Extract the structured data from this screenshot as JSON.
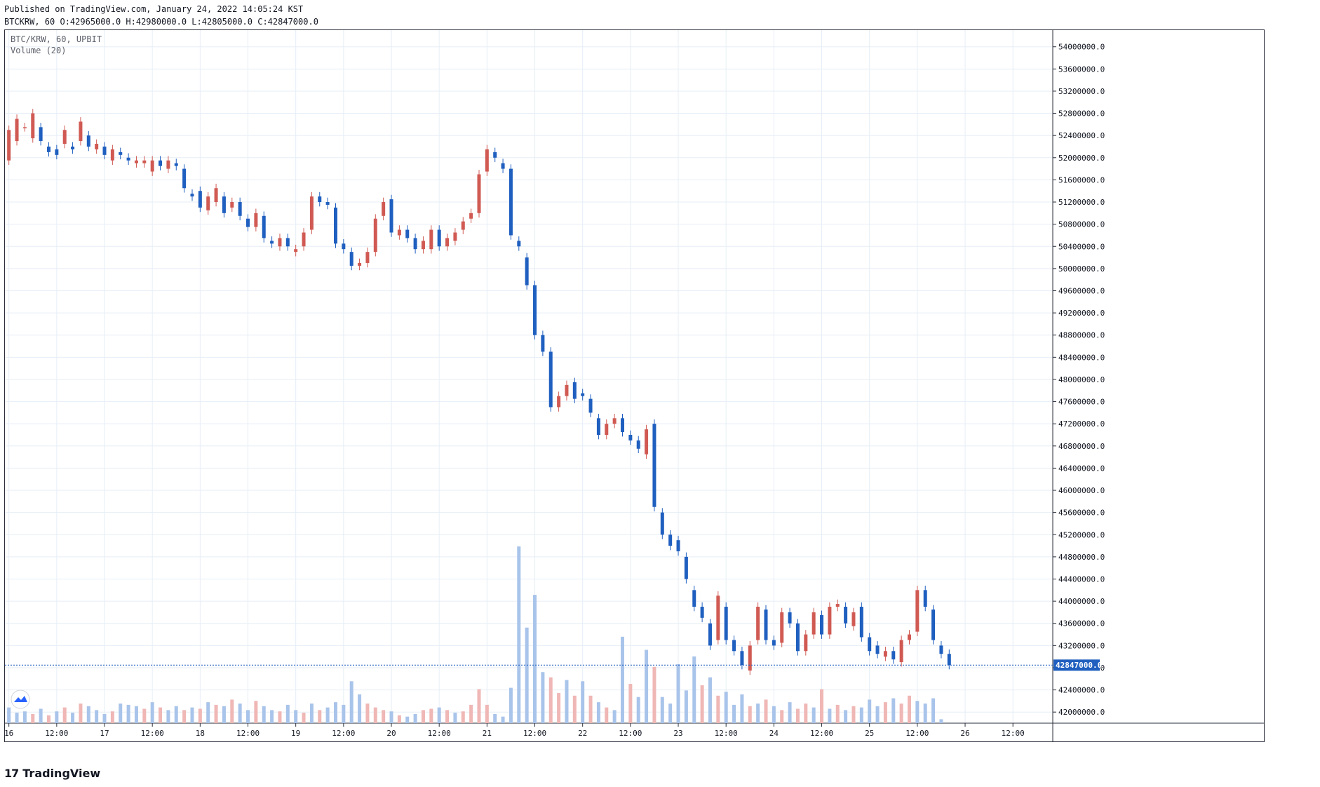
{
  "header": {
    "published_line": "Published on TradingView.com, January 24, 2022 14:05:24 KST",
    "ohlc_line": "BTCKRW, 60 O:42965000.0 H:42980000.0 L:42805000.0 C:42847000.0"
  },
  "overlay": {
    "symbol_label": "BTC/KRW, 60, UPBIT",
    "volume_label": "Volume (20)"
  },
  "footer": {
    "brand": "TradingView",
    "brand_mark": "17"
  },
  "colors": {
    "up": "#d05a53",
    "down": "#1f5fbf",
    "up_volume": "#efb7b5",
    "down_volume": "#a9c4ea",
    "grid": "#e6eef6",
    "last_price": "#1f5fbf"
  },
  "chart_data": {
    "type": "candlestick",
    "symbol": "BTC/KRW",
    "interval": "60",
    "exchange": "UPBIT",
    "ylim": [
      41800000,
      54300000
    ],
    "price_ticks": [
      42000000.0,
      42400000.0,
      42800000.0,
      43200000.0,
      43600000.0,
      44000000.0,
      44400000.0,
      44800000.0,
      45200000.0,
      45600000.0,
      46000000.0,
      46400000.0,
      46800000.0,
      47200000.0,
      47600000.0,
      48000000.0,
      48400000.0,
      48800000.0,
      49200000.0,
      49600000.0,
      50000000.0,
      50400000.0,
      50800000.0,
      51200000.0,
      51600000.0,
      52000000.0,
      52400000.0,
      52800000.0,
      53200000.0,
      53600000.0,
      54000000.0
    ],
    "last_price": "42847000.0",
    "last_price_value": 42847000,
    "time_ticks": [
      "16",
      "12:00",
      "17",
      "12:00",
      "18",
      "12:00",
      "19",
      "12:00",
      "20",
      "12:00",
      "21",
      "12:00",
      "22",
      "12:00",
      "23",
      "12:00",
      "24",
      "12:00",
      "25",
      "12:00",
      "26",
      "12:00"
    ],
    "time_tick_hours": [
      0,
      12,
      24,
      36,
      48,
      60,
      72,
      84,
      96,
      108,
      120,
      132,
      144,
      156,
      168,
      180,
      192,
      204,
      216,
      228,
      240,
      252
    ],
    "hour_range": [
      -1,
      262
    ],
    "candles": [
      [
        0,
        51950000,
        52500000
      ],
      [
        2,
        52300000,
        52700000
      ],
      [
        4,
        52550000,
        52550000
      ],
      [
        6,
        52350000,
        52800000
      ],
      [
        8,
        52550000,
        52300000
      ],
      [
        10,
        52200000,
        52100000
      ],
      [
        12,
        52150000,
        52050000
      ],
      [
        14,
        52250000,
        52500000
      ],
      [
        16,
        52200000,
        52150000
      ],
      [
        18,
        52300000,
        52650000
      ],
      [
        20,
        52400000,
        52200000
      ],
      [
        22,
        52150000,
        52250000
      ],
      [
        24,
        52200000,
        52050000
      ],
      [
        26,
        51950000,
        52150000
      ],
      [
        28,
        52100000,
        52050000
      ],
      [
        30,
        52000000,
        51950000
      ],
      [
        32,
        51900000,
        51950000
      ],
      [
        34,
        51900000,
        51950000
      ],
      [
        36,
        51750000,
        51950000
      ],
      [
        38,
        51950000,
        51850000
      ],
      [
        40,
        51800000,
        51950000
      ],
      [
        42,
        51900000,
        51850000
      ],
      [
        44,
        51800000,
        51450000
      ],
      [
        46,
        51350000,
        51300000
      ],
      [
        48,
        51400000,
        51100000
      ],
      [
        50,
        51050000,
        51300000
      ],
      [
        52,
        51200000,
        51450000
      ],
      [
        54,
        51300000,
        51000000
      ],
      [
        56,
        51100000,
        51200000
      ],
      [
        58,
        51200000,
        50950000
      ],
      [
        60,
        50900000,
        50750000
      ],
      [
        62,
        50750000,
        51000000
      ],
      [
        64,
        50950000,
        50550000
      ],
      [
        66,
        50500000,
        50450000
      ],
      [
        68,
        50400000,
        50550000
      ],
      [
        70,
        50550000,
        50400000
      ],
      [
        72,
        50300000,
        50350000
      ],
      [
        74,
        50400000,
        50650000
      ],
      [
        76,
        50700000,
        51300000
      ],
      [
        78,
        51300000,
        51200000
      ],
      [
        80,
        51200000,
        51150000
      ],
      [
        82,
        51100000,
        50450000
      ],
      [
        84,
        50450000,
        50350000
      ],
      [
        86,
        50300000,
        50050000
      ],
      [
        88,
        50050000,
        50100000
      ],
      [
        90,
        50100000,
        50300000
      ],
      [
        92,
        50300000,
        50900000
      ],
      [
        94,
        50950000,
        51200000
      ],
      [
        96,
        51250000,
        50650000
      ],
      [
        98,
        50600000,
        50700000
      ],
      [
        100,
        50700000,
        50550000
      ],
      [
        102,
        50550000,
        50350000
      ],
      [
        104,
        50350000,
        50500000
      ],
      [
        106,
        50350000,
        50700000
      ],
      [
        108,
        50700000,
        50400000
      ],
      [
        110,
        50400000,
        50550000
      ],
      [
        112,
        50500000,
        50650000
      ],
      [
        114,
        50700000,
        50850000
      ],
      [
        116,
        50900000,
        51000000
      ],
      [
        118,
        51000000,
        51700000
      ],
      [
        120,
        51750000,
        52150000
      ],
      [
        122,
        52100000,
        52000000
      ],
      [
        124,
        51900000,
        51800000
      ],
      [
        126,
        51800000,
        50600000
      ],
      [
        128,
        50500000,
        50400000
      ],
      [
        130,
        50200000,
        49700000
      ],
      [
        132,
        49700000,
        48800000
      ],
      [
        134,
        48800000,
        48500000
      ],
      [
        136,
        48500000,
        47500000
      ],
      [
        138,
        47500000,
        47700000
      ],
      [
        140,
        47700000,
        47900000
      ],
      [
        142,
        47950000,
        47650000
      ],
      [
        144,
        47750000,
        47700000
      ],
      [
        146,
        47650000,
        47400000
      ],
      [
        148,
        47300000,
        47000000
      ],
      [
        150,
        47000000,
        47200000
      ],
      [
        152,
        47200000,
        47300000
      ],
      [
        154,
        47300000,
        47050000
      ],
      [
        156,
        47000000,
        46900000
      ],
      [
        158,
        46900000,
        46750000
      ],
      [
        160,
        46650000,
        47100000
      ],
      [
        162,
        47200000,
        45700000
      ],
      [
        164,
        45600000,
        45200000
      ],
      [
        166,
        45200000,
        45000000
      ],
      [
        168,
        45100000,
        44900000
      ],
      [
        170,
        44800000,
        44400000
      ],
      [
        172,
        44200000,
        43900000
      ],
      [
        174,
        43900000,
        43700000
      ],
      [
        176,
        43600000,
        43200000
      ],
      [
        178,
        43300000,
        44100000
      ],
      [
        180,
        43900000,
        43300000
      ],
      [
        182,
        43300000,
        43100000
      ],
      [
        184,
        43100000,
        42850000
      ],
      [
        186,
        42750000,
        43200000
      ],
      [
        188,
        43300000,
        43900000
      ],
      [
        190,
        43850000,
        43300000
      ],
      [
        192,
        43300000,
        43200000
      ],
      [
        194,
        43250000,
        43800000
      ],
      [
        196,
        43800000,
        43600000
      ],
      [
        198,
        43600000,
        43100000
      ],
      [
        200,
        43100000,
        43400000
      ],
      [
        202,
        43400000,
        43800000
      ],
      [
        204,
        43750000,
        43400000
      ],
      [
        206,
        43400000,
        43900000
      ],
      [
        208,
        43900000,
        43950000
      ],
      [
        210,
        43900000,
        43600000
      ],
      [
        212,
        43550000,
        43800000
      ],
      [
        214,
        43900000,
        43350000
      ],
      [
        216,
        43350000,
        43100000
      ],
      [
        218,
        43200000,
        43050000
      ],
      [
        220,
        43000000,
        43100000
      ],
      [
        222,
        43100000,
        42950000
      ],
      [
        224,
        42900000,
        43300000
      ],
      [
        226,
        43300000,
        43400000
      ],
      [
        228,
        43450000,
        44200000
      ],
      [
        230,
        44200000,
        43900000
      ],
      [
        232,
        43850000,
        43300000
      ],
      [
        234,
        43200000,
        43050000
      ],
      [
        236,
        43050000,
        42850000
      ]
    ],
    "volumes": [
      [
        0,
        1.2,
        "down"
      ],
      [
        2,
        0.8,
        "down"
      ],
      [
        4,
        0.9,
        "down"
      ],
      [
        6,
        0.7,
        "up"
      ],
      [
        8,
        1.1,
        "down"
      ],
      [
        10,
        0.6,
        "up"
      ],
      [
        12,
        0.9,
        "down"
      ],
      [
        14,
        1.2,
        "up"
      ],
      [
        16,
        0.8,
        "down"
      ],
      [
        18,
        1.5,
        "up"
      ],
      [
        20,
        1.3,
        "down"
      ],
      [
        22,
        1.0,
        "down"
      ],
      [
        24,
        0.7,
        "down"
      ],
      [
        26,
        0.9,
        "up"
      ],
      [
        28,
        1.5,
        "down"
      ],
      [
        30,
        1.4,
        "down"
      ],
      [
        32,
        1.3,
        "down"
      ],
      [
        34,
        1.1,
        "up"
      ],
      [
        36,
        1.6,
        "down"
      ],
      [
        38,
        1.2,
        "up"
      ],
      [
        40,
        1.0,
        "down"
      ],
      [
        42,
        1.3,
        "down"
      ],
      [
        44,
        1.0,
        "up"
      ],
      [
        46,
        1.2,
        "down"
      ],
      [
        48,
        1.1,
        "up"
      ],
      [
        50,
        1.6,
        "down"
      ],
      [
        52,
        1.4,
        "up"
      ],
      [
        54,
        1.3,
        "down"
      ],
      [
        56,
        1.8,
        "up"
      ],
      [
        58,
        1.5,
        "down"
      ],
      [
        60,
        1.0,
        "down"
      ],
      [
        62,
        1.7,
        "up"
      ],
      [
        64,
        1.3,
        "down"
      ],
      [
        66,
        1.0,
        "down"
      ],
      [
        68,
        0.9,
        "up"
      ],
      [
        70,
        1.4,
        "down"
      ],
      [
        72,
        1.0,
        "down"
      ],
      [
        74,
        0.8,
        "up"
      ],
      [
        76,
        1.5,
        "down"
      ],
      [
        78,
        1.0,
        "up"
      ],
      [
        80,
        1.2,
        "down"
      ],
      [
        82,
        1.6,
        "down"
      ],
      [
        84,
        1.4,
        "down"
      ],
      [
        86,
        3.2,
        "down"
      ],
      [
        88,
        2.2,
        "down"
      ],
      [
        90,
        1.5,
        "up"
      ],
      [
        92,
        1.2,
        "up"
      ],
      [
        94,
        1.0,
        "up"
      ],
      [
        96,
        0.9,
        "down"
      ],
      [
        98,
        0.6,
        "up"
      ],
      [
        100,
        0.5,
        "down"
      ],
      [
        102,
        0.7,
        "down"
      ],
      [
        104,
        1.0,
        "up"
      ],
      [
        106,
        1.1,
        "up"
      ],
      [
        108,
        1.2,
        "down"
      ],
      [
        110,
        1.0,
        "up"
      ],
      [
        112,
        0.8,
        "down"
      ],
      [
        114,
        0.9,
        "up"
      ],
      [
        116,
        1.4,
        "up"
      ],
      [
        118,
        2.6,
        "up"
      ],
      [
        120,
        1.4,
        "up"
      ],
      [
        122,
        0.7,
        "down"
      ],
      [
        124,
        0.5,
        "down"
      ],
      [
        126,
        2.7,
        "down"
      ],
      [
        128,
        13.5,
        "down"
      ],
      [
        130,
        7.3,
        "down"
      ],
      [
        132,
        9.8,
        "down"
      ],
      [
        134,
        3.9,
        "down"
      ],
      [
        136,
        3.5,
        "up"
      ],
      [
        138,
        2.3,
        "up"
      ],
      [
        140,
        3.3,
        "down"
      ],
      [
        142,
        2.1,
        "up"
      ],
      [
        144,
        3.2,
        "down"
      ],
      [
        146,
        2.1,
        "up"
      ],
      [
        148,
        1.6,
        "down"
      ],
      [
        150,
        1.2,
        "up"
      ],
      [
        152,
        1.0,
        "down"
      ],
      [
        154,
        6.6,
        "down"
      ],
      [
        156,
        3.0,
        "up"
      ],
      [
        158,
        2.0,
        "down"
      ],
      [
        160,
        5.6,
        "down"
      ],
      [
        162,
        4.3,
        "up"
      ],
      [
        164,
        2.0,
        "down"
      ],
      [
        166,
        1.5,
        "down"
      ],
      [
        168,
        4.5,
        "down"
      ],
      [
        170,
        2.5,
        "down"
      ],
      [
        172,
        5.1,
        "down"
      ],
      [
        174,
        2.9,
        "up"
      ],
      [
        176,
        3.5,
        "down"
      ],
      [
        178,
        2.1,
        "up"
      ],
      [
        180,
        2.4,
        "down"
      ],
      [
        182,
        1.4,
        "down"
      ],
      [
        184,
        2.2,
        "down"
      ],
      [
        186,
        1.3,
        "up"
      ],
      [
        188,
        1.5,
        "down"
      ],
      [
        190,
        1.8,
        "up"
      ],
      [
        192,
        1.3,
        "down"
      ],
      [
        194,
        1.0,
        "up"
      ],
      [
        196,
        1.6,
        "down"
      ],
      [
        198,
        1.1,
        "up"
      ],
      [
        200,
        1.5,
        "up"
      ],
      [
        202,
        1.2,
        "down"
      ],
      [
        204,
        2.6,
        "up"
      ],
      [
        206,
        1.1,
        "down"
      ],
      [
        208,
        1.4,
        "up"
      ],
      [
        210,
        1.0,
        "down"
      ],
      [
        212,
        1.3,
        "up"
      ],
      [
        214,
        1.2,
        "down"
      ],
      [
        216,
        1.8,
        "down"
      ],
      [
        218,
        1.3,
        "down"
      ],
      [
        220,
        1.6,
        "up"
      ],
      [
        222,
        1.9,
        "down"
      ],
      [
        224,
        1.5,
        "up"
      ],
      [
        226,
        2.1,
        "up"
      ],
      [
        228,
        1.7,
        "down"
      ],
      [
        230,
        1.5,
        "down"
      ],
      [
        232,
        1.9,
        "down"
      ],
      [
        234,
        0.3,
        "down"
      ]
    ]
  }
}
